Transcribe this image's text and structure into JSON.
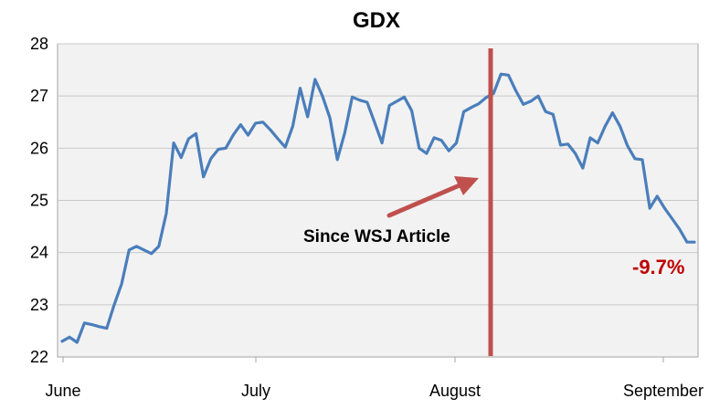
{
  "chart_data": {
    "type": "line",
    "title": "GDX",
    "xlabel": "",
    "ylabel": "",
    "ylim": [
      22,
      28
    ],
    "yticks": [
      "22",
      "23",
      "24",
      "25",
      "26",
      "27",
      "28"
    ],
    "xticks": [
      "June",
      "July",
      "August",
      "September"
    ],
    "grid": true,
    "legend": "none",
    "series": [
      {
        "color": "#4a7ebb",
        "x": [
          0,
          1,
          2,
          3,
          4,
          5,
          6,
          7,
          8,
          9,
          10,
          11,
          12,
          13,
          14,
          15,
          16,
          17,
          18,
          19,
          20,
          21,
          22,
          23,
          24,
          25,
          26,
          27,
          28,
          29,
          30,
          31,
          32,
          33,
          34,
          35,
          36,
          37,
          38,
          39,
          40,
          41,
          42,
          43,
          44,
          45,
          46,
          47,
          48,
          49,
          50,
          51,
          52,
          53,
          54,
          55,
          56,
          57,
          58,
          59,
          60,
          61,
          62,
          63,
          64,
          65,
          66,
          67,
          68,
          69,
          70,
          71,
          72,
          73,
          74,
          75,
          76,
          77,
          78,
          79,
          80,
          81,
          82,
          83,
          84,
          85,
          86,
          87,
          88,
          89,
          90,
          91,
          92,
          93,
          94,
          95,
          96,
          97,
          98,
          99,
          100,
          101,
          102,
          103,
          104,
          105,
          106
        ],
        "values": [
          22.3,
          22.38,
          22.28,
          22.65,
          22.62,
          22.58,
          22.55,
          23.0,
          23.4,
          24.05,
          24.12,
          24.05,
          23.98,
          24.12,
          24.75,
          26.1,
          25.82,
          26.18,
          26.28,
          25.45,
          25.8,
          25.98,
          26.0,
          26.25,
          26.45,
          26.25,
          26.48,
          26.5,
          26.35,
          26.18,
          26.02,
          26.42,
          27.15,
          26.6,
          27.32,
          27.0,
          26.58,
          25.78,
          26.3,
          26.98,
          26.92,
          26.88,
          26.5,
          26.1,
          26.82,
          26.9,
          26.98,
          26.72,
          26.0,
          25.9,
          26.2,
          26.15,
          25.95,
          26.1,
          26.7,
          26.78,
          26.85,
          26.97,
          27.05,
          27.42,
          27.4,
          27.1,
          26.84,
          26.9,
          27.0,
          26.7,
          26.65,
          26.06,
          26.08,
          25.9,
          25.62,
          26.2,
          26.1,
          26.42,
          26.68,
          26.42,
          26.05,
          25.8,
          25.78,
          24.85,
          25.08,
          24.85,
          24.65,
          24.45,
          24.2,
          24.2,
          24.2,
          24.2,
          24.2,
          24.2,
          24.2,
          24.2,
          24.2,
          24.2,
          24.2,
          24.2,
          24.2,
          24.2,
          24.2,
          24.2,
          24.2,
          24.2,
          24.2,
          24.2,
          24.2,
          24.2,
          24.2
        ]
      }
    ],
    "annotations": {
      "label": "Since WSJ Article",
      "change": "-9.7%",
      "marker_color": "#c0504d",
      "change_color": "#c00000"
    }
  }
}
